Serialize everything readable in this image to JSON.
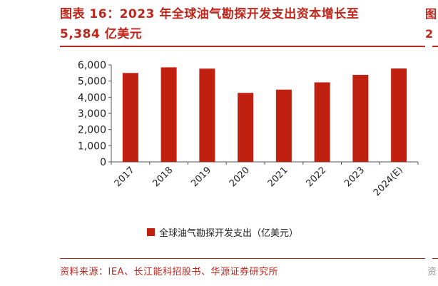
{
  "title": {
    "line1": "图表 16：2023 年全球油气勘探开发支出资本增长至",
    "line2": "5,384 亿美元"
  },
  "edge_title": {
    "line1": "图",
    "line2": "2"
  },
  "edge_source": "资",
  "source": "资料来源：IEA、长江能科招股书、华源证券研究所",
  "colors": {
    "accent": "#c0261b",
    "bar": "#c0200f",
    "axis": "#555555"
  },
  "chart_data": {
    "type": "bar",
    "title": "",
    "xlabel": "",
    "ylabel": "",
    "ylim": [
      0,
      6000
    ],
    "yticks": [
      "0",
      "1,000",
      "2,000",
      "3,000",
      "4,000",
      "5,000",
      "6,000"
    ],
    "ytick_values": [
      0,
      1000,
      2000,
      3000,
      4000,
      5000,
      6000
    ],
    "categories": [
      "2017",
      "2018",
      "2019",
      "2020",
      "2021",
      "2022",
      "2023",
      "2024(E)"
    ],
    "series": [
      {
        "name": "全球油气勘探开发支出（亿美元）",
        "values": [
          5500,
          5850,
          5770,
          4270,
          4470,
          4920,
          5384,
          5780
        ]
      }
    ],
    "legend": "bottom-center",
    "grid": false
  }
}
